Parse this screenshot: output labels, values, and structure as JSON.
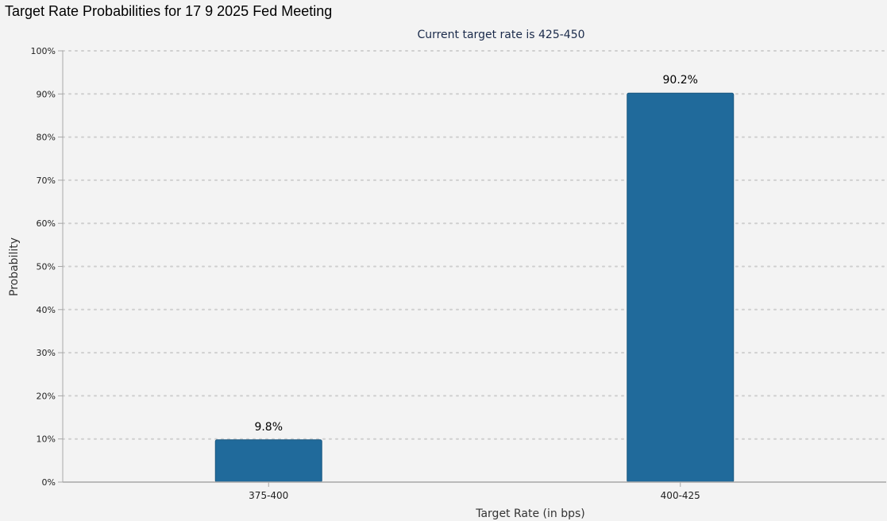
{
  "header": {
    "title": "Target Rate Probabilities for 17 9 2025 Fed Meeting"
  },
  "colors": {
    "bar_fill": "#206a9b",
    "bar_stroke": "#1a5880",
    "grid": "#cfcfcf",
    "axis": "#a8a8a8",
    "background": "#f3f3f3"
  },
  "chart_data": {
    "type": "bar",
    "title": "Target Rate Probabilities for 17 9 2025 Fed Meeting",
    "subtitle": "Current target rate is 425-450",
    "xlabel": "Target Rate (in bps)",
    "ylabel": "Probability",
    "categories": [
      "375-400",
      "400-425"
    ],
    "values": [
      9.8,
      90.2
    ],
    "data_labels": [
      "9.8%",
      "90.2%"
    ],
    "ylim": [
      0,
      100
    ],
    "yticks": [
      0,
      10,
      20,
      30,
      40,
      50,
      60,
      70,
      80,
      90,
      100
    ],
    "ytick_labels": [
      "0%",
      "10%",
      "20%",
      "30%",
      "40%",
      "50%",
      "60%",
      "70%",
      "80%",
      "90%",
      "100%"
    ],
    "grid": true,
    "legend": "none"
  }
}
